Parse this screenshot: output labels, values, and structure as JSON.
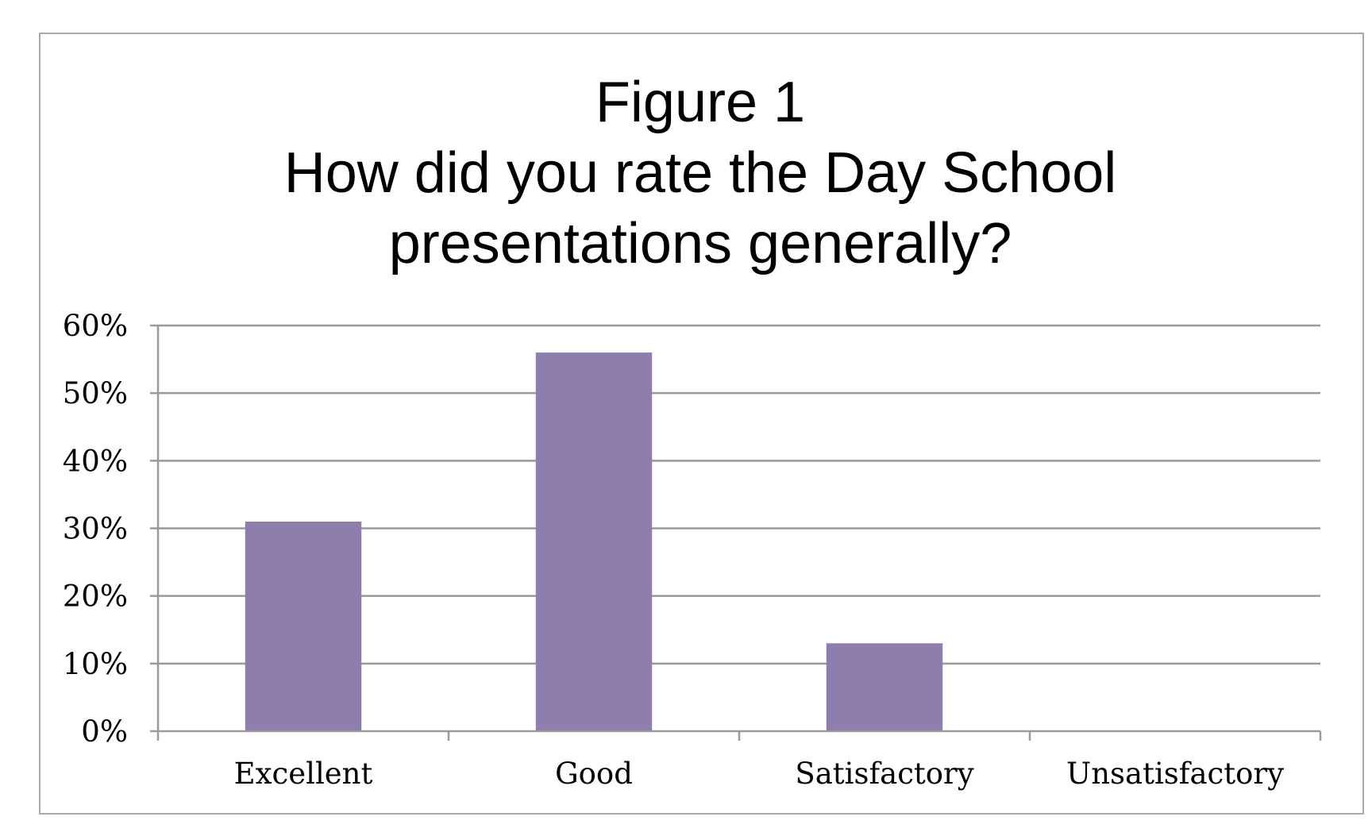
{
  "chart_data": {
    "type": "bar",
    "title_lines": [
      "Figure 1",
      "How did you rate the Day School",
      "presentations generally?"
    ],
    "categories": [
      "Excellent",
      "Good",
      "Satisfactory",
      "Unsatisfactory"
    ],
    "series": [
      {
        "values": [
          0.31,
          0.56,
          0.13,
          0.0
        ]
      }
    ],
    "ylim": [
      0,
      0.6
    ],
    "yticks": [
      0,
      0.1,
      0.2,
      0.3,
      0.4,
      0.5,
      0.6
    ],
    "ytick_labels": [
      "0%",
      "10%",
      "20%",
      "30%",
      "40%",
      "50%",
      "60%"
    ],
    "grid": true,
    "legend": "none",
    "bar_color": "#8d7eae",
    "grid_color": "#9a9a9a",
    "axis_color": "#9a9a9a"
  }
}
